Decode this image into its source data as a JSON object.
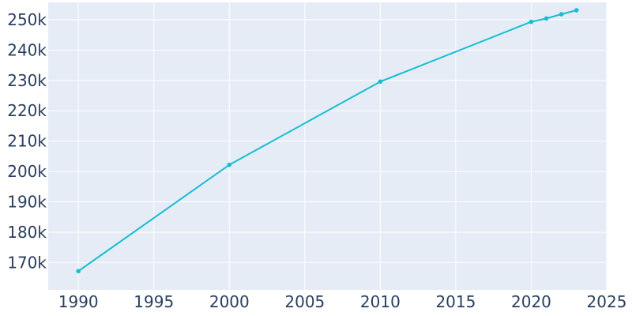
{
  "chart_data": {
    "type": "line",
    "title": "",
    "xlabel": "",
    "ylabel": "",
    "x": [
      1990,
      2000,
      2010,
      2020,
      2021,
      2022,
      2023
    ],
    "series": [
      {
        "values": [
          167200,
          202200,
          229600,
          249300,
          250400,
          251800,
          253100
        ]
      }
    ],
    "xlim": [
      1988,
      2025
    ],
    "ylim": [
      161000,
      255700
    ],
    "x_ticks": [
      1990,
      1995,
      2000,
      2005,
      2010,
      2015,
      2020,
      2025
    ],
    "x_tick_labels": [
      "1990",
      "1995",
      "2000",
      "2005",
      "2010",
      "2015",
      "2020",
      "2025"
    ],
    "y_ticks": [
      170000,
      180000,
      190000,
      200000,
      210000,
      220000,
      230000,
      240000,
      250000
    ],
    "y_tick_labels": [
      "170k",
      "180k",
      "190k",
      "200k",
      "210k",
      "220k",
      "230k",
      "240k",
      "250k"
    ],
    "grid": true,
    "colors": {
      "line": "#17becf",
      "plot_background": "#e5ecf6",
      "grid": "#ffffff",
      "tick_text": "#2a3f5f"
    }
  }
}
